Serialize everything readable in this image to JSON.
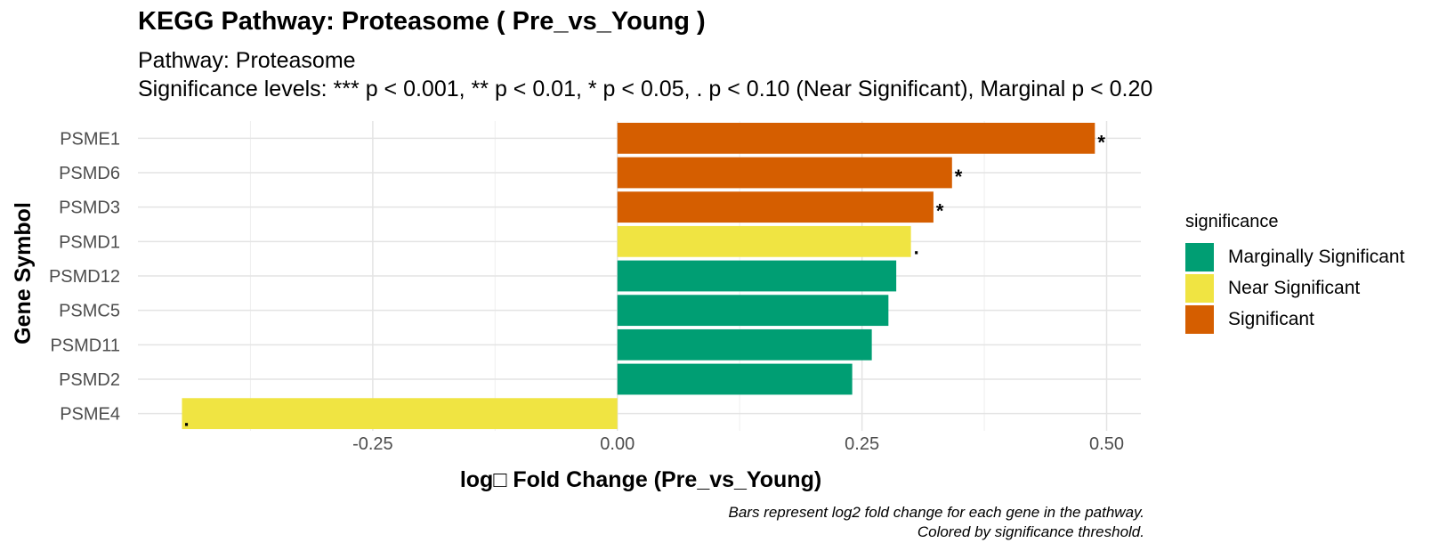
{
  "chart_data": {
    "type": "bar",
    "orientation": "horizontal",
    "title": "KEGG Pathway: Proteasome ( Pre_vs_Young )",
    "subtitle_lines": [
      "Pathway: Proteasome",
      "Significance levels: *** p < 0.001, ** p < 0.01, * p < 0.05, . p < 0.10 (Near Significant), Marginal p < 0.20"
    ],
    "xlabel": "log□ Fold Change (Pre_vs_Young)",
    "ylabel": "Gene Symbol",
    "xlim": [
      -0.49,
      0.535
    ],
    "x_ticks": [
      -0.25,
      0.0,
      0.25,
      0.5
    ],
    "x_tick_labels": [
      "-0.25",
      "0.00",
      "0.25",
      "0.50"
    ],
    "grid": true,
    "categories": [
      "PSME1",
      "PSMD6",
      "PSMD3",
      "PSMD1",
      "PSMD12",
      "PSMC5",
      "PSMD11",
      "PSMD2",
      "PSME4"
    ],
    "values": [
      0.488,
      0.342,
      0.323,
      0.3,
      0.285,
      0.277,
      0.26,
      0.24,
      -0.445
    ],
    "significance": [
      "Significant",
      "Significant",
      "Significant",
      "Near Significant",
      "Marginally Significant",
      "Marginally Significant",
      "Marginally Significant",
      "Marginally Significant",
      "Near Significant"
    ],
    "labels": [
      "*",
      "*",
      "*",
      ".",
      "",
      "",
      "",
      "",
      "."
    ],
    "legend": {
      "title": "significance",
      "position": "right",
      "entries": [
        {
          "name": "Marginally Significant",
          "color": "#009E73"
        },
        {
          "name": "Near Significant",
          "color": "#F0E442"
        },
        {
          "name": "Significant",
          "color": "#D55E00"
        }
      ]
    },
    "caption_lines": [
      "Bars represent log2 fold change for each gene in the pathway.",
      "Colored by significance threshold."
    ]
  }
}
